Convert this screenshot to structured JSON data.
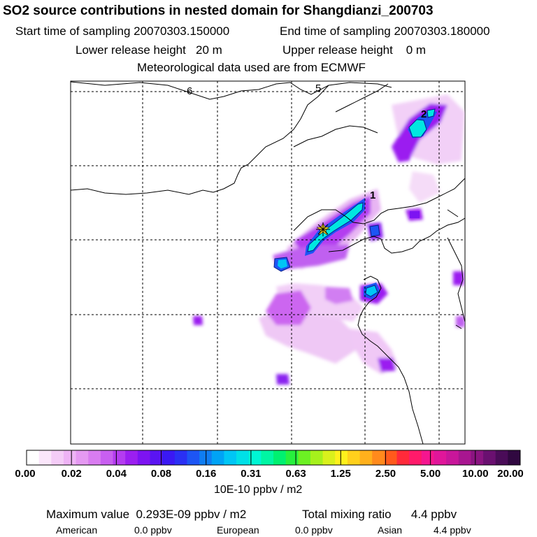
{
  "header": {
    "title": "SO2 source contributions in nested domain for Shangdianzi_200703",
    "start": "Start time of sampling 20070303.150000",
    "end": "End time of sampling 20070303.180000",
    "lower": "Lower release height   20 m",
    "upper": "Upper release height    0 m",
    "met": "Meteorological data used are from ECMWF"
  },
  "chart_data": {
    "type": "heatmap",
    "title": "SO2 source contributions in nested domain for Shangdianzi_200703",
    "grid_labels": [
      "6",
      "5"
    ],
    "contour_labels": [
      "1",
      "2"
    ],
    "colorbar": {
      "ticks": [
        "0.00",
        "0.02",
        "0.04",
        "0.08",
        "0.16",
        "0.31",
        "0.63",
        "1.25",
        "2.50",
        "5.00",
        "10.00",
        "20.00"
      ],
      "unit": "10E-10 ppbv / m2",
      "colors": [
        "#ffffff",
        "#fbe6fb",
        "#f4ccf7",
        "#eeb3f5",
        "#e599f2",
        "#d97cf0",
        "#c85ff0",
        "#b43cf0",
        "#9b1ff0",
        "#7d13f2",
        "#5a14f2",
        "#3a18f4",
        "#2a30f4",
        "#1d55f4",
        "#0f7df2",
        "#00a3f5",
        "#00c6f5",
        "#00e0e8",
        "#00f5d4",
        "#00f5a3",
        "#00f070",
        "#27f03d",
        "#6cf023",
        "#a6f01c",
        "#d9f01c",
        "#fff01c",
        "#ffd01c",
        "#ffb01c",
        "#ff8a1c",
        "#ff5a1c",
        "#ff2a3a",
        "#ff1a6a",
        "#f5168f",
        "#e0169a",
        "#c8169a",
        "#a81690",
        "#8a1480",
        "#6a1070",
        "#4a0c58",
        "#300840"
      ]
    },
    "max_value": "Maximum value  0.293E-09 ppbv / m2",
    "total_mixing": "Total mixing ratio      4.4 ppbv",
    "regions": [
      {
        "name": "American",
        "value": "0.0 ppbv"
      },
      {
        "name": "European",
        "value": "0.0 ppbv"
      },
      {
        "name": "Asian",
        "value": "4.4 ppbv"
      }
    ]
  }
}
